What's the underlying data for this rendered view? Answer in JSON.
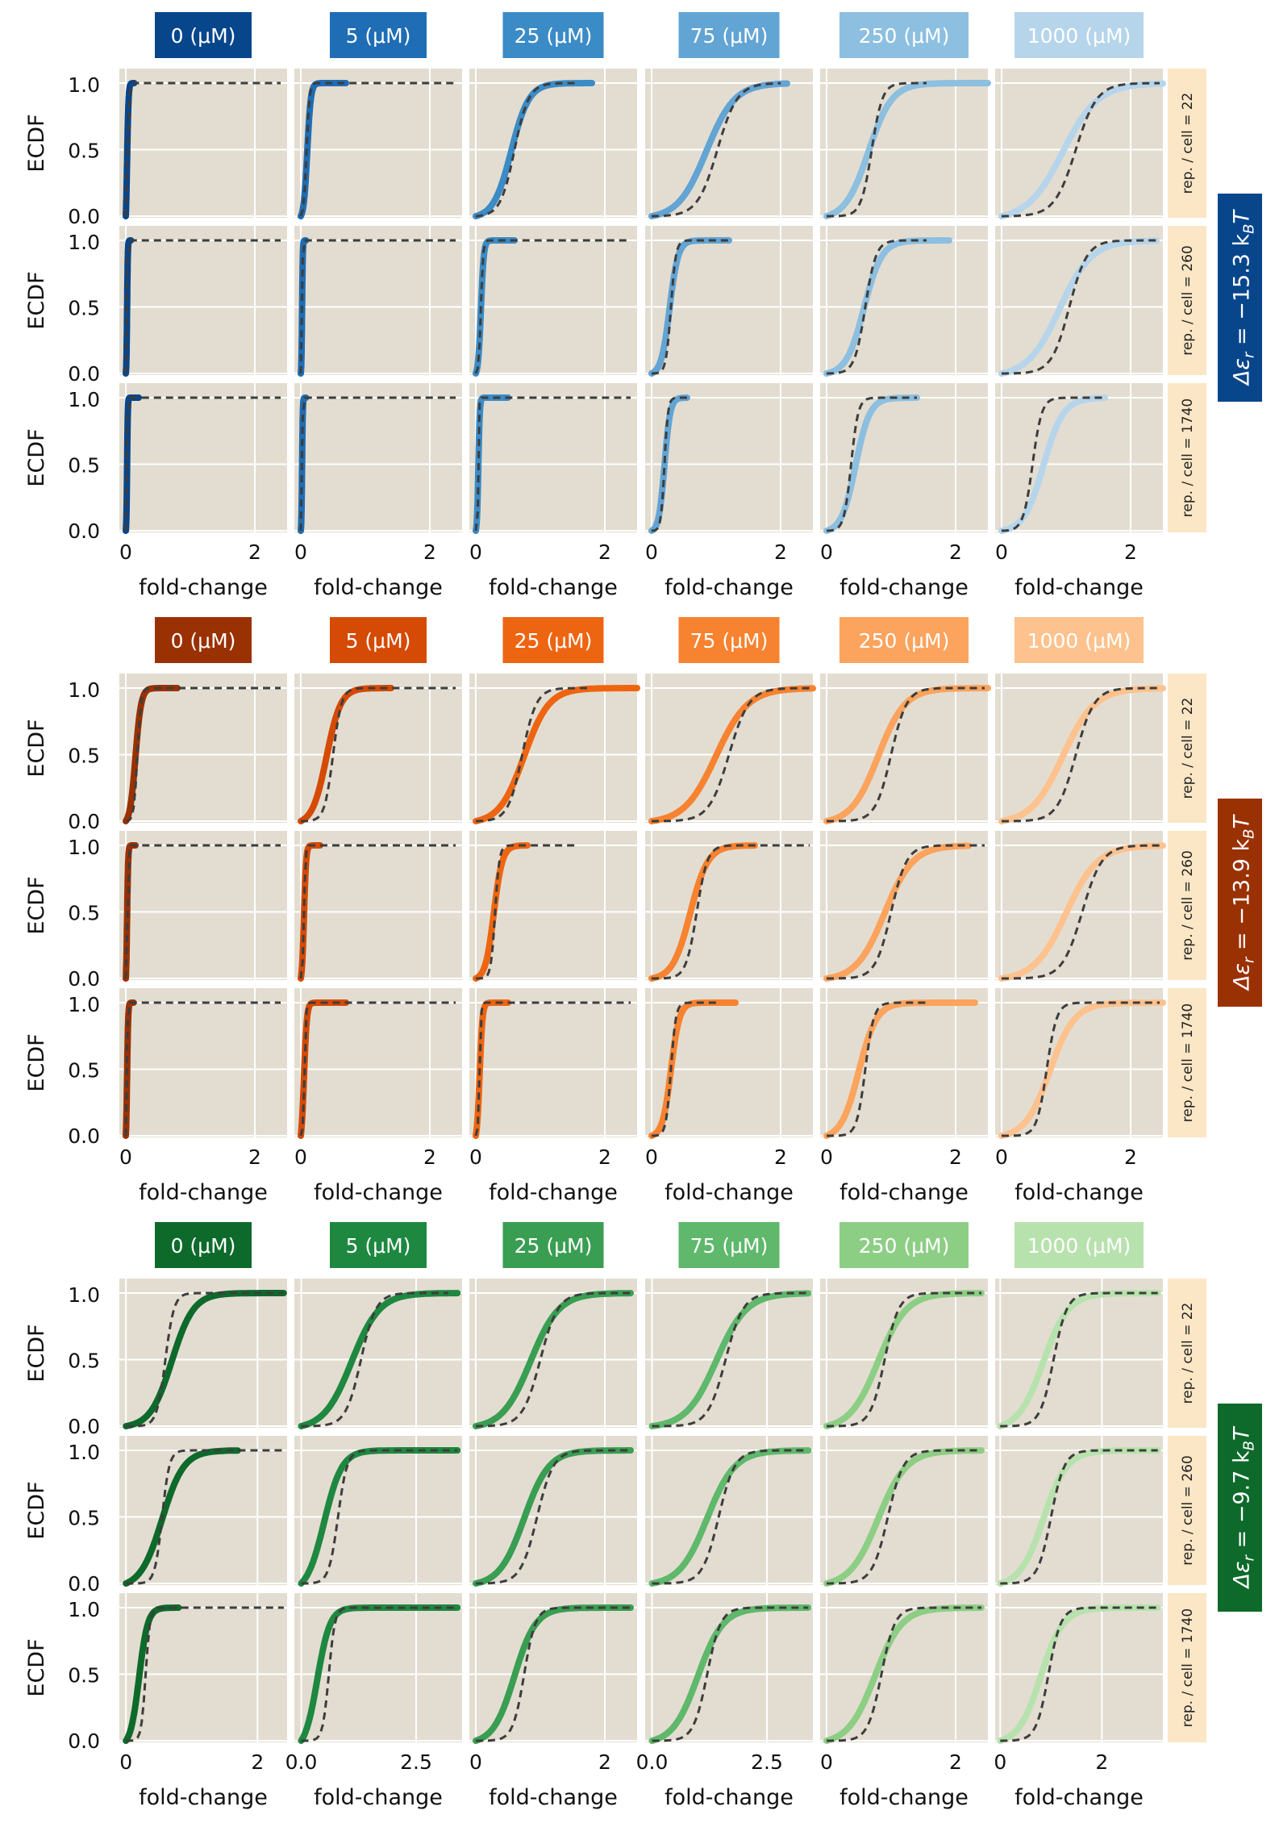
{
  "figure": {
    "ylabel": "ECDF",
    "xlabel": "fold-change",
    "ytick_labels": [
      "0.0",
      "0.5",
      "1.0"
    ],
    "concentrations": [
      "0 (μM)",
      "5 (μM)",
      "25 (μM)",
      "75 (μM)",
      "250 (μM)",
      "1000 (μM)"
    ],
    "row_labels": [
      "rep. / cell = 22",
      "rep. / cell = 260",
      "rep. / cell = 1740"
    ],
    "colors": {
      "panel_bg": "#e3ddd1",
      "grid": "#ffffff",
      "theory_line": "#3d3d3d",
      "row_label_bg": "#fbe6c5"
    }
  },
  "chart_data": [
    {
      "type": "line",
      "group": "Δε_r = −15.3 k_BT",
      "group_label": {
        "pre": "Δε",
        "sub1": "r",
        "mid": " = −15.3 k",
        "sub2": "B",
        "post": "T"
      },
      "group_color": "#08468c",
      "series_colors": [
        "#08468c",
        "#1f6db5",
        "#3b8bc6",
        "#62a4d4",
        "#8cbfe0",
        "#b6d5eb"
      ],
      "header_text_colors": [
        "#ffffff",
        "#ffffff",
        "#ffffff",
        "#ffffff",
        "#ffffff",
        "#ffffff"
      ],
      "x_ticks": [
        [
          0,
          2
        ],
        [
          0,
          2
        ],
        [
          0,
          2
        ],
        [
          0,
          2
        ],
        [
          0,
          2
        ],
        [
          0,
          2
        ]
      ],
      "xlim": [
        [
          -0.1,
          2.5
        ],
        [
          -0.1,
          2.5
        ],
        [
          -0.1,
          2.5
        ],
        [
          -0.1,
          2.5
        ],
        [
          -0.1,
          2.5
        ],
        [
          -0.1,
          2.5
        ]
      ],
      "ylim": [
        0,
        1
      ],
      "panels": [
        [
          {
            "m": 0.02,
            "s": 0.02,
            "e": 0.13,
            "t": 0.03,
            "ts": 0.02,
            "te": 2.4
          },
          {
            "m": 0.1,
            "s": 0.05,
            "e": 0.7,
            "t": 0.09,
            "ts": 0.04,
            "te": 2.4
          },
          {
            "m": 0.55,
            "s": 0.25,
            "e": 1.8,
            "t": 0.6,
            "ts": 0.2,
            "te": 1.55
          },
          {
            "m": 0.85,
            "s": 0.4,
            "e": 2.1,
            "t": 1.02,
            "ts": 0.28,
            "te": 2.0
          },
          {
            "m": 0.65,
            "s": 0.33,
            "e": 2.5,
            "t": 0.7,
            "ts": 0.15,
            "te": 1.55
          },
          {
            "m": 0.95,
            "s": 0.5,
            "e": 2.5,
            "t": 1.15,
            "ts": 0.3,
            "te": 2.45
          }
        ],
        [
          {
            "m": 0.02,
            "s": 0.01,
            "e": 0.08,
            "t": 0.02,
            "ts": 0.01,
            "te": 2.4
          },
          {
            "m": 0.02,
            "s": 0.01,
            "e": 0.08,
            "t": 0.02,
            "ts": 0.01,
            "te": 2.4
          },
          {
            "m": 0.08,
            "s": 0.04,
            "e": 0.6,
            "t": 0.08,
            "ts": 0.03,
            "te": 2.4
          },
          {
            "m": 0.28,
            "s": 0.12,
            "e": 1.2,
            "t": 0.3,
            "ts": 0.07,
            "te": 1.2
          },
          {
            "m": 0.58,
            "s": 0.25,
            "e": 1.9,
            "t": 0.6,
            "ts": 0.15,
            "te": 1.55
          },
          {
            "m": 0.9,
            "s": 0.45,
            "e": 2.4,
            "t": 1.05,
            "ts": 0.25,
            "te": 2.45
          }
        ],
        [
          {
            "m": 0.02,
            "s": 0.01,
            "e": 0.2,
            "t": 0.02,
            "ts": 0.01,
            "te": 2.4
          },
          {
            "m": 0.02,
            "s": 0.01,
            "e": 0.08,
            "t": 0.02,
            "ts": 0.01,
            "te": 2.4
          },
          {
            "m": 0.04,
            "s": 0.02,
            "e": 0.5,
            "t": 0.04,
            "ts": 0.01,
            "te": 2.4
          },
          {
            "m": 0.2,
            "s": 0.08,
            "e": 0.55,
            "t": 0.2,
            "ts": 0.05,
            "te": 0.55
          },
          {
            "m": 0.45,
            "s": 0.2,
            "e": 1.4,
            "t": 0.38,
            "ts": 0.1,
            "te": 1.4
          },
          {
            "m": 0.65,
            "s": 0.28,
            "e": 1.6,
            "t": 0.48,
            "ts": 0.13,
            "te": 1.6
          }
        ]
      ]
    },
    {
      "type": "line",
      "group": "Δε_r = −13.9 k_BT",
      "group_label": {
        "pre": "Δε",
        "sub1": "r",
        "mid": " = −13.9 k",
        "sub2": "B",
        "post": "T"
      },
      "group_color": "#9a3103",
      "series_colors": [
        "#9a3103",
        "#d54a05",
        "#ee6511",
        "#f7822f",
        "#fca35d",
        "#fdc28e"
      ],
      "header_text_colors": [
        "#ffffff",
        "#ffffff",
        "#ffffff",
        "#ffffff",
        "#ffffff",
        "#ffffff"
      ],
      "x_ticks": [
        [
          0,
          2
        ],
        [
          0,
          2
        ],
        [
          0,
          2
        ],
        [
          0,
          2
        ],
        [
          0,
          2
        ],
        [
          0,
          2
        ]
      ],
      "xlim": [
        [
          -0.1,
          2.5
        ],
        [
          -0.1,
          2.5
        ],
        [
          -0.1,
          2.5
        ],
        [
          -0.1,
          2.5
        ],
        [
          -0.1,
          2.5
        ],
        [
          -0.1,
          2.5
        ]
      ],
      "ylim": [
        0,
        1
      ],
      "panels": [
        [
          {
            "m": 0.15,
            "s": 0.08,
            "e": 0.8,
            "t": 0.18,
            "ts": 0.05,
            "te": 2.4
          },
          {
            "m": 0.4,
            "s": 0.2,
            "e": 1.4,
            "t": 0.5,
            "ts": 0.12,
            "te": 2.4
          },
          {
            "m": 0.75,
            "s": 0.35,
            "e": 2.5,
            "t": 0.72,
            "ts": 0.2,
            "te": 1.8
          },
          {
            "m": 1.0,
            "s": 0.45,
            "e": 2.5,
            "t": 1.2,
            "ts": 0.28,
            "te": 2.45
          },
          {
            "m": 0.8,
            "s": 0.38,
            "e": 2.5,
            "t": 1.0,
            "ts": 0.22,
            "te": 2.45
          },
          {
            "m": 0.95,
            "s": 0.45,
            "e": 2.5,
            "t": 1.15,
            "ts": 0.26,
            "te": 2.45
          }
        ],
        [
          {
            "m": 0.02,
            "s": 0.015,
            "e": 0.15,
            "t": 0.03,
            "ts": 0.01,
            "te": 2.4
          },
          {
            "m": 0.05,
            "s": 0.03,
            "e": 0.3,
            "t": 0.05,
            "ts": 0.02,
            "te": 2.4
          },
          {
            "m": 0.28,
            "s": 0.12,
            "e": 0.8,
            "t": 0.3,
            "ts": 0.06,
            "te": 1.6
          },
          {
            "m": 0.6,
            "s": 0.25,
            "e": 1.6,
            "t": 0.7,
            "ts": 0.15,
            "te": 2.45
          },
          {
            "m": 0.9,
            "s": 0.4,
            "e": 2.2,
            "t": 1.0,
            "ts": 0.22,
            "te": 2.45
          },
          {
            "m": 1.0,
            "s": 0.45,
            "e": 2.5,
            "t": 1.25,
            "ts": 0.28,
            "te": 2.45
          }
        ],
        [
          {
            "m": 0.02,
            "s": 0.015,
            "e": 0.12,
            "t": 0.02,
            "ts": 0.01,
            "te": 2.4
          },
          {
            "m": 0.05,
            "s": 0.04,
            "e": 0.7,
            "t": 0.06,
            "ts": 0.02,
            "te": 2.4
          },
          {
            "m": 0.06,
            "s": 0.04,
            "e": 0.5,
            "t": 0.06,
            "ts": 0.02,
            "te": 2.4
          },
          {
            "m": 0.3,
            "s": 0.12,
            "e": 1.3,
            "t": 0.3,
            "ts": 0.07,
            "te": 1.0
          },
          {
            "m": 0.5,
            "s": 0.25,
            "e": 2.3,
            "t": 0.6,
            "ts": 0.12,
            "te": 1.55
          },
          {
            "m": 0.75,
            "s": 0.35,
            "e": 2.5,
            "t": 0.7,
            "ts": 0.14,
            "te": 2.45
          }
        ]
      ]
    },
    {
      "type": "line",
      "group": "Δε_r = −9.7 k_BT",
      "group_label": {
        "pre": "Δε",
        "sub1": "r",
        "mid": " = −9.7 k",
        "sub2": "B",
        "post": "T"
      },
      "group_color": "#0d6a2b",
      "series_colors": [
        "#0d6a2b",
        "#1e8840",
        "#399e52",
        "#5fb86b",
        "#8dce85",
        "#b8e2ad"
      ],
      "header_text_colors": [
        "#ffffff",
        "#ffffff",
        "#ffffff",
        "#ffffff",
        "#ffffff",
        "#ffffff"
      ],
      "x_ticks": [
        [
          0,
          2
        ],
        [
          0.0,
          2.5
        ],
        [
          0,
          2
        ],
        [
          0.0,
          2.5
        ],
        [
          0,
          2
        ],
        [
          0,
          2
        ]
      ],
      "x_tick_labels": [
        [
          "0",
          "2"
        ],
        [
          "0.0",
          "2.5"
        ],
        [
          "0",
          "2"
        ],
        [
          "0.0",
          "2.5"
        ],
        [
          "0",
          "2"
        ],
        [
          "0",
          "2"
        ]
      ],
      "xlim": [
        [
          -0.1,
          2.45
        ],
        [
          -0.15,
          3.5
        ],
        [
          -0.1,
          2.5
        ],
        [
          -0.15,
          3.5
        ],
        [
          -0.1,
          2.5
        ],
        [
          -0.1,
          3.2
        ]
      ],
      "ylim": [
        0,
        1
      ],
      "panels": [
        [
          {
            "m": 0.7,
            "s": 0.3,
            "e": 2.4,
            "t": 0.6,
            "ts": 0.12,
            "te": 2.4
          },
          {
            "m": 1.1,
            "s": 0.55,
            "e": 3.4,
            "t": 1.3,
            "ts": 0.3,
            "te": 3.2
          },
          {
            "m": 0.85,
            "s": 0.4,
            "e": 2.4,
            "t": 1.0,
            "ts": 0.25,
            "te": 2.4
          },
          {
            "m": 1.4,
            "s": 0.6,
            "e": 3.4,
            "t": 1.6,
            "ts": 0.35,
            "te": 3.4
          },
          {
            "m": 0.8,
            "s": 0.4,
            "e": 2.4,
            "t": 0.9,
            "ts": 0.2,
            "te": 2.4
          },
          {
            "m": 0.85,
            "s": 0.45,
            "e": 3.1,
            "t": 1.05,
            "ts": 0.24,
            "te": 3.1
          }
        ],
        [
          {
            "m": 0.55,
            "s": 0.3,
            "e": 1.7,
            "t": 0.55,
            "ts": 0.1,
            "te": 2.4
          },
          {
            "m": 0.5,
            "s": 0.35,
            "e": 3.4,
            "t": 0.8,
            "ts": 0.18,
            "te": 3.4
          },
          {
            "m": 0.75,
            "s": 0.35,
            "e": 2.4,
            "t": 0.95,
            "ts": 0.23,
            "te": 2.4
          },
          {
            "m": 1.2,
            "s": 0.55,
            "e": 3.4,
            "t": 1.45,
            "ts": 0.32,
            "te": 3.4
          },
          {
            "m": 0.8,
            "s": 0.4,
            "e": 2.4,
            "t": 0.95,
            "ts": 0.22,
            "te": 2.4
          },
          {
            "m": 0.85,
            "s": 0.42,
            "e": 3.1,
            "t": 1.0,
            "ts": 0.24,
            "te": 3.1
          }
        ],
        [
          {
            "m": 0.2,
            "s": 0.12,
            "e": 0.8,
            "t": 0.3,
            "ts": 0.06,
            "te": 2.4
          },
          {
            "m": 0.35,
            "s": 0.25,
            "e": 3.4,
            "t": 0.6,
            "ts": 0.12,
            "te": 3.4
          },
          {
            "m": 0.6,
            "s": 0.3,
            "e": 2.4,
            "t": 0.75,
            "ts": 0.16,
            "te": 2.4
          },
          {
            "m": 1.0,
            "s": 0.5,
            "e": 3.4,
            "t": 1.2,
            "ts": 0.27,
            "te": 3.4
          },
          {
            "m": 0.75,
            "s": 0.38,
            "e": 2.4,
            "t": 0.85,
            "ts": 0.19,
            "te": 2.4
          },
          {
            "m": 0.8,
            "s": 0.4,
            "e": 3.1,
            "t": 0.95,
            "ts": 0.22,
            "te": 3.1
          }
        ]
      ]
    }
  ]
}
